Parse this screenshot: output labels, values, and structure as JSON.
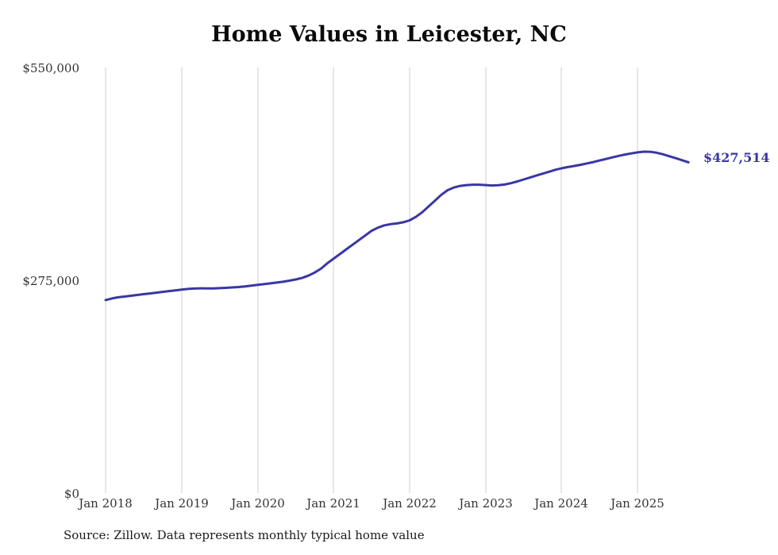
{
  "chart_data": {
    "type": "line",
    "title": "Home Values in Leicester, NC",
    "source": "Source: Zillow. Data represents monthly typical home value",
    "series_name": "Typical home value",
    "frequency": "monthly",
    "x_start": "Jan 2018",
    "x_end": "Sep 2025",
    "x_tick_labels": [
      "Jan 2018",
      "Jan 2019",
      "Jan 2020",
      "Jan 2021",
      "Jan 2022",
      "Jan 2023",
      "Jan 2024",
      "Jan 2025"
    ],
    "y_tick_labels": [
      "$550,000",
      "$275,000",
      "$0"
    ],
    "ylim": [
      0,
      550000
    ],
    "end_label": "$427,514",
    "last_value": 427514,
    "line_color": "#3a36a5",
    "gridlines": "vertical-only",
    "values": [
      249500,
      251500,
      253000,
      254000,
      255000,
      256000,
      257000,
      258000,
      259000,
      260000,
      261000,
      262000,
      263000,
      263800,
      264300,
      264600,
      264500,
      264400,
      264800,
      265300,
      265800,
      266300,
      267000,
      268000,
      269000,
      270000,
      271000,
      272000,
      273000,
      274500,
      276000,
      278000,
      281000,
      285000,
      290000,
      297000,
      303000,
      309000,
      315000,
      321000,
      327000,
      333000,
      339000,
      343000,
      346000,
      347500,
      348500,
      350000,
      352500,
      357000,
      363000,
      370500,
      378000,
      385500,
      391500,
      395000,
      397000,
      398000,
      398500,
      398500,
      398000,
      397500,
      397800,
      398800,
      400500,
      402800,
      405300,
      407800,
      410300,
      412800,
      415300,
      417800,
      419800,
      421300,
      422800,
      424300,
      426000,
      427800,
      429800,
      431800,
      433800,
      435800,
      437500,
      439000,
      440300,
      441200,
      441000,
      439800,
      437800,
      435300,
      432800,
      430100,
      427514
    ]
  }
}
